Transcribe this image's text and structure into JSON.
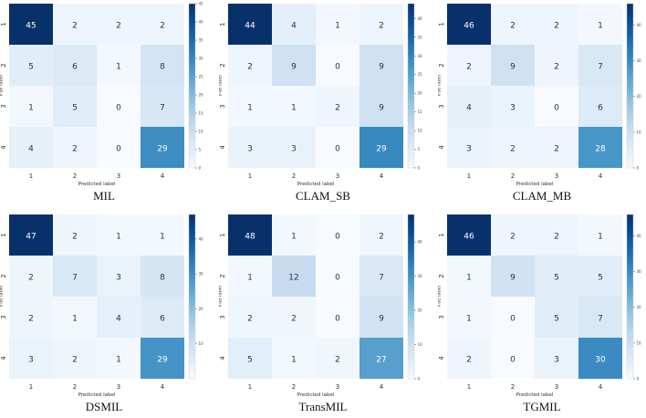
{
  "chart_data": [
    {
      "type": "heatmap",
      "title": "MIL",
      "xlabel": "Predicted label",
      "ylabel": "True label",
      "x_categories": [
        "1",
        "2",
        "3",
        "4"
      ],
      "y_categories": [
        "1",
        "2",
        "3",
        "4"
      ],
      "matrix": [
        [
          45,
          2,
          2,
          2
        ],
        [
          5,
          6,
          1,
          8
        ],
        [
          1,
          5,
          0,
          7
        ],
        [
          4,
          2,
          0,
          29
        ]
      ],
      "colorbar": {
        "min": 0,
        "max": 45,
        "ticks": [
          0,
          5,
          10,
          15,
          20,
          25,
          30,
          35,
          40,
          45
        ]
      }
    },
    {
      "type": "heatmap",
      "title": "CLAM_SB",
      "xlabel": "Predicted label",
      "ylabel": "True label",
      "x_categories": [
        "1",
        "2",
        "3",
        "4"
      ],
      "y_categories": [
        "1",
        "2",
        "3",
        "4"
      ],
      "matrix": [
        [
          44,
          4,
          1,
          2
        ],
        [
          2,
          9,
          0,
          9
        ],
        [
          1,
          1,
          2,
          9
        ],
        [
          3,
          3,
          0,
          29
        ]
      ],
      "colorbar": {
        "min": 0,
        "max": 44,
        "ticks": [
          0,
          5,
          10,
          15,
          20,
          25,
          30,
          35,
          40
        ]
      }
    },
    {
      "type": "heatmap",
      "title": "CLAM_MB",
      "xlabel": "Predicted label",
      "ylabel": "True label",
      "x_categories": [
        "1",
        "2",
        "3",
        "4"
      ],
      "y_categories": [
        "1",
        "2",
        "3",
        "4"
      ],
      "matrix": [
        [
          46,
          2,
          2,
          1
        ],
        [
          2,
          9,
          2,
          7
        ],
        [
          4,
          3,
          0,
          6
        ],
        [
          3,
          2,
          2,
          28
        ]
      ],
      "colorbar": {
        "min": 0,
        "max": 46,
        "ticks": [
          0,
          10,
          20,
          30,
          40
        ]
      }
    },
    {
      "type": "heatmap",
      "title": "DSMIL",
      "xlabel": "Predicted label",
      "ylabel": "True label",
      "x_categories": [
        "1",
        "2",
        "3",
        "4"
      ],
      "y_categories": [
        "1",
        "2",
        "3",
        "4"
      ],
      "matrix": [
        [
          47,
          2,
          1,
          1
        ],
        [
          2,
          7,
          3,
          8
        ],
        [
          2,
          1,
          4,
          6
        ],
        [
          3,
          2,
          1,
          29
        ]
      ],
      "colorbar": {
        "min": 0,
        "max": 47,
        "ticks": [
          10,
          20,
          30,
          40
        ]
      }
    },
    {
      "type": "heatmap",
      "title": "TransMIL",
      "xlabel": "Predicted label",
      "ylabel": "True label",
      "x_categories": [
        "1",
        "2",
        "3",
        "4"
      ],
      "y_categories": [
        "1",
        "2",
        "3",
        "4"
      ],
      "matrix": [
        [
          48,
          1,
          0,
          2
        ],
        [
          1,
          12,
          0,
          7
        ],
        [
          2,
          2,
          0,
          9
        ],
        [
          5,
          1,
          2,
          27
        ]
      ],
      "colorbar": {
        "min": 0,
        "max": 48,
        "ticks": [
          0,
          10,
          20,
          30,
          40
        ]
      }
    },
    {
      "type": "heatmap",
      "title": "TGMIL",
      "xlabel": "Predicted label",
      "ylabel": "True label",
      "x_categories": [
        "1",
        "2",
        "3",
        "4"
      ],
      "y_categories": [
        "1",
        "2",
        "3",
        "4"
      ],
      "matrix": [
        [
          46,
          2,
          2,
          1
        ],
        [
          1,
          9,
          5,
          5
        ],
        [
          1,
          0,
          5,
          7
        ],
        [
          2,
          0,
          3,
          30
        ]
      ],
      "colorbar": {
        "min": 0,
        "max": 46,
        "ticks": [
          0,
          10,
          20,
          30,
          40
        ]
      }
    }
  ],
  "colors": {
    "low": "#f7fbff",
    "high": "#08306b",
    "text_dark": "#333333",
    "text_light": "#ffffff"
  }
}
